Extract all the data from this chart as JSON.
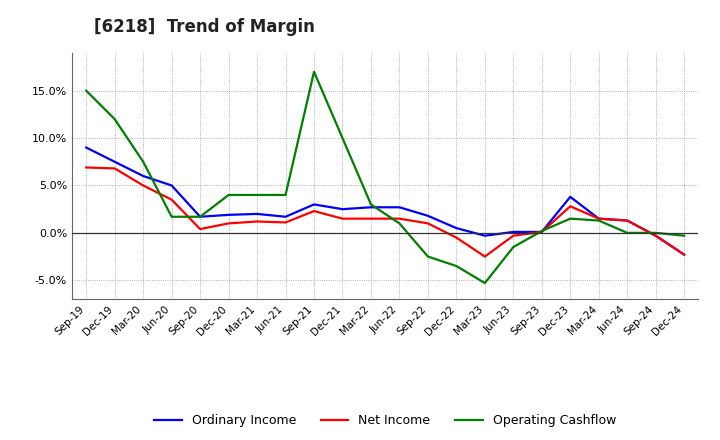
{
  "title": "[6218]  Trend of Margin",
  "x_labels": [
    "Sep-19",
    "Dec-19",
    "Mar-20",
    "Jun-20",
    "Sep-20",
    "Dec-20",
    "Mar-21",
    "Jun-21",
    "Sep-21",
    "Dec-21",
    "Mar-22",
    "Jun-22",
    "Sep-22",
    "Dec-22",
    "Mar-23",
    "Jun-23",
    "Sep-23",
    "Dec-23",
    "Mar-24",
    "Jun-24",
    "Sep-24",
    "Dec-24"
  ],
  "ordinary_income": [
    9.0,
    7.5,
    6.0,
    5.0,
    1.7,
    1.9,
    2.0,
    1.7,
    3.0,
    2.5,
    2.7,
    2.7,
    1.8,
    0.5,
    -0.3,
    0.1,
    0.1,
    3.8,
    1.5,
    1.3,
    -0.3,
    -2.3
  ],
  "net_income": [
    6.9,
    6.8,
    5.0,
    3.5,
    0.4,
    1.0,
    1.2,
    1.1,
    2.3,
    1.5,
    1.5,
    1.5,
    1.0,
    -0.5,
    -2.5,
    -0.3,
    0.1,
    2.8,
    1.5,
    1.3,
    -0.3,
    -2.3
  ],
  "operating_cashflow": [
    15.0,
    12.0,
    7.5,
    1.7,
    1.7,
    4.0,
    4.0,
    4.0,
    17.0,
    10.0,
    3.0,
    1.0,
    -2.5,
    -3.5,
    -5.3,
    -1.5,
    0.2,
    1.5,
    1.3,
    0.0,
    0.0,
    -0.3
  ],
  "ordinary_color": "#0000ff",
  "net_color": "#ff0000",
  "cashflow_color": "#008000",
  "ylim": [
    -7,
    19
  ],
  "yticks": [
    -5.0,
    0.0,
    5.0,
    10.0,
    15.0
  ],
  "background_color": "#ffffff",
  "grid_color": "#999999",
  "title_fontsize": 12,
  "legend_labels": [
    "Ordinary Income",
    "Net Income",
    "Operating Cashflow"
  ]
}
